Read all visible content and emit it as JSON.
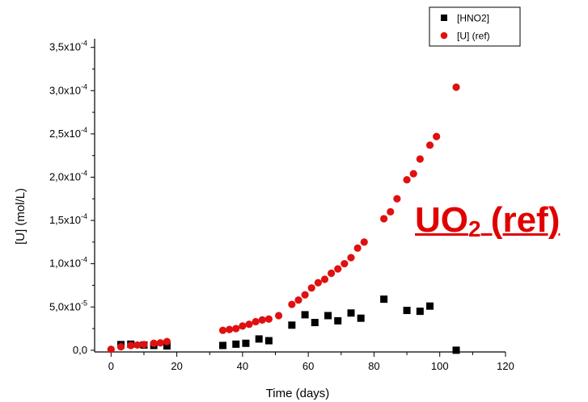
{
  "chart_data": {
    "type": "scatter",
    "xlabel": "Time (days)",
    "ylabel": "[U] (mol/L)",
    "xlim": [
      -5,
      120
    ],
    "ylim": [
      -2e-06,
      0.00036
    ],
    "x_ticks": [
      0,
      20,
      40,
      60,
      80,
      100,
      120
    ],
    "x_tick_labels": [
      "0",
      "20",
      "40",
      "60",
      "80",
      "100",
      "120"
    ],
    "y_ticks": [
      0,
      5e-05,
      0.0001,
      0.00015,
      0.0002,
      0.00025,
      0.0003,
      0.00035
    ],
    "y_tick_labels": [
      {
        "mantissa": "0,0",
        "exp": ""
      },
      {
        "mantissa": "5,0x10",
        "exp": "-5"
      },
      {
        "mantissa": "1,0x10",
        "exp": "-4"
      },
      {
        "mantissa": "1,5x10",
        "exp": "-4"
      },
      {
        "mantissa": "2,0x10",
        "exp": "-4"
      },
      {
        "mantissa": "2,5x10",
        "exp": "-4"
      },
      {
        "mantissa": "3,0x10",
        "exp": "-4"
      },
      {
        "mantissa": "3,5x10",
        "exp": "-4"
      }
    ],
    "legend_position": "top-right",
    "grid": false,
    "series": [
      {
        "name": "[HNO2]",
        "marker": "square",
        "color": "#000000",
        "points": [
          [
            3,
            6.5e-06
          ],
          [
            6,
            7e-06
          ],
          [
            10,
            6e-06
          ],
          [
            13,
            5.5e-06
          ],
          [
            17,
            5e-06
          ],
          [
            34,
            5.5e-06
          ],
          [
            38,
            7e-06
          ],
          [
            41,
            8e-06
          ],
          [
            45,
            1.3e-05
          ],
          [
            48,
            1.1e-05
          ],
          [
            55,
            2.9e-05
          ],
          [
            59,
            4.1e-05
          ],
          [
            62,
            3.2e-05
          ],
          [
            66,
            4e-05
          ],
          [
            69,
            3.4e-05
          ],
          [
            73,
            4.3e-05
          ],
          [
            76,
            3.7e-05
          ],
          [
            83,
            5.9e-05
          ],
          [
            90,
            4.6e-05
          ],
          [
            94,
            4.5e-05
          ],
          [
            97,
            5.1e-05
          ],
          [
            105,
            0.0
          ]
        ]
      },
      {
        "name": "[U] (ref)",
        "marker": "circle",
        "color": "#e01010",
        "points": [
          [
            0,
            1e-06
          ],
          [
            3,
            4e-06
          ],
          [
            6,
            5.5e-06
          ],
          [
            8,
            6e-06
          ],
          [
            10,
            6.5e-06
          ],
          [
            13,
            8e-06
          ],
          [
            15,
            8.5e-06
          ],
          [
            17,
            1e-05
          ],
          [
            34,
            2.3e-05
          ],
          [
            36,
            2.4e-05
          ],
          [
            38,
            2.5e-05
          ],
          [
            40,
            2.8e-05
          ],
          [
            42,
            3e-05
          ],
          [
            44,
            3.3e-05
          ],
          [
            46,
            3.5e-05
          ],
          [
            48,
            3.6e-05
          ],
          [
            51,
            4e-05
          ],
          [
            55,
            5.3e-05
          ],
          [
            57,
            5.8e-05
          ],
          [
            59,
            6.4e-05
          ],
          [
            61,
            7.2e-05
          ],
          [
            63,
            7.8e-05
          ],
          [
            65,
            8.2e-05
          ],
          [
            67,
            8.9e-05
          ],
          [
            69,
            9.4e-05
          ],
          [
            71,
            0.0001
          ],
          [
            73,
            0.000107
          ],
          [
            75,
            0.000118
          ],
          [
            77,
            0.000125
          ],
          [
            83,
            0.000152
          ],
          [
            85,
            0.00016
          ],
          [
            87,
            0.000175
          ],
          [
            90,
            0.000197
          ],
          [
            92,
            0.000204
          ],
          [
            94,
            0.000221
          ],
          [
            97,
            0.000237
          ],
          [
            99,
            0.000247
          ],
          [
            105,
            0.000304
          ]
        ]
      }
    ]
  },
  "annotation": {
    "text_main": "UO",
    "text_sub": "2",
    "text_rest": " (ref)",
    "color": "#e00000"
  }
}
